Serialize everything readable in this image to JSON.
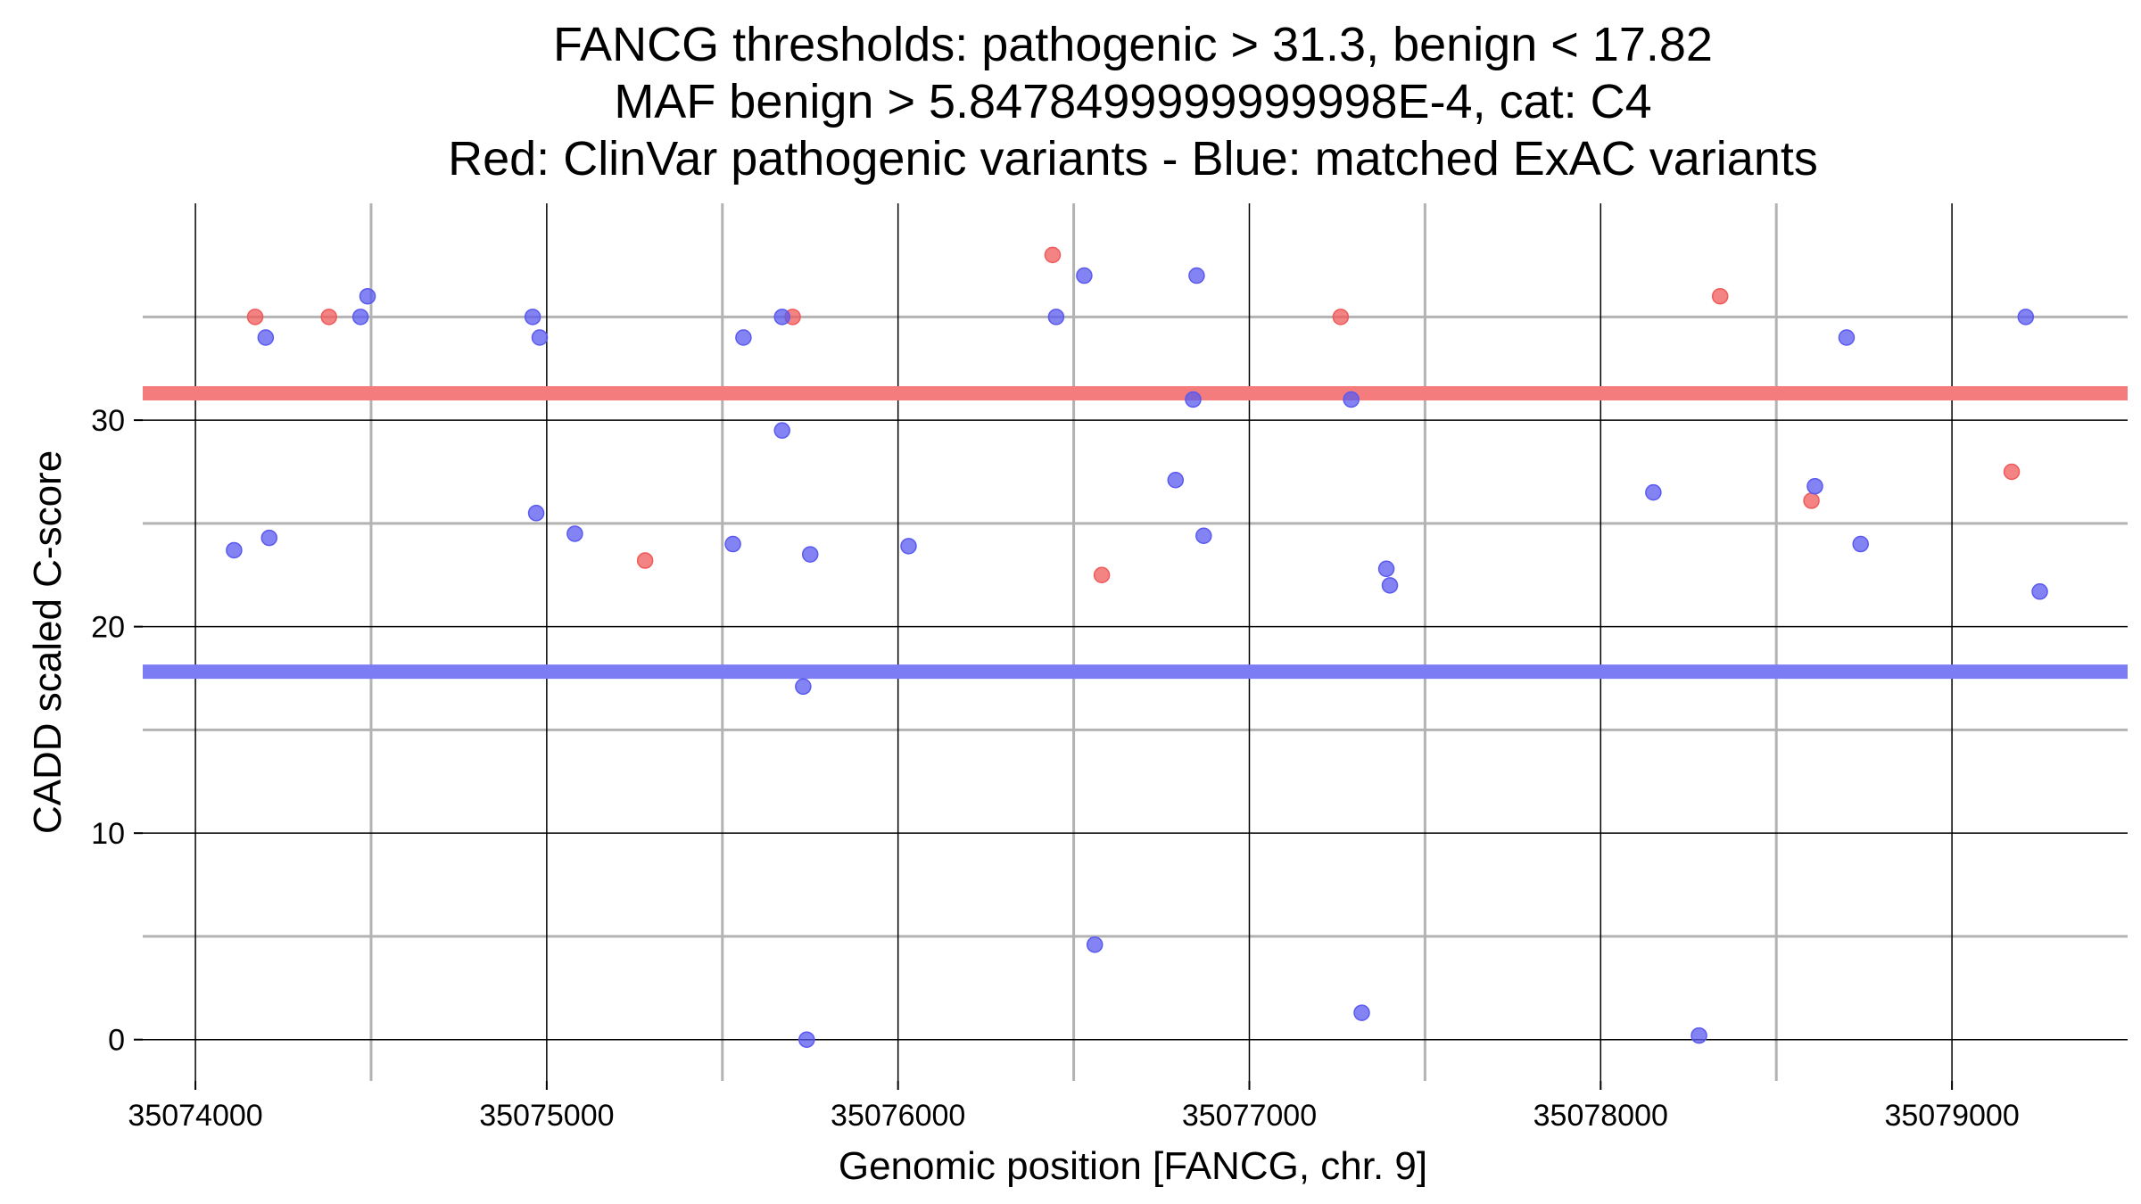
{
  "chart_data": {
    "type": "scatter",
    "title_lines": [
      "FANCG thresholds: pathogenic > 31.3, benign < 17.82",
      "MAF benign > 5.8478499999999998E-4, cat: C4",
      "Red: ClinVar pathogenic variants - Blue: matched ExAC variants"
    ],
    "xlabel": "Genomic position [FANCG, chr. 9]",
    "ylabel": "CADD scaled C-score",
    "xlim": [
      35073850,
      35079500
    ],
    "ylim": [
      -2,
      40.5
    ],
    "x_ticks": [
      35074000,
      35075000,
      35076000,
      35077000,
      35078000,
      35079000
    ],
    "x_tick_labels": [
      "35074000",
      "35075000",
      "35076000",
      "35077000",
      "35078000",
      "35079000"
    ],
    "x_minor_grid": [
      35074500,
      35075500,
      35076500,
      35077500,
      35078500
    ],
    "y_ticks": [
      0,
      10,
      20,
      30
    ],
    "y_tick_labels": [
      "0",
      "10",
      "20",
      "30"
    ],
    "y_minor_grid": [
      5,
      15,
      25,
      35
    ],
    "grid": true,
    "thresholds": [
      {
        "kind": "pathogenic",
        "y": 31.3,
        "color": "#f47c7c"
      },
      {
        "kind": "benign",
        "y": 17.82,
        "color": "#7c7cf4"
      }
    ],
    "series": [
      {
        "color": "#f05a5a",
        "points": [
          [
            35074170,
            35
          ],
          [
            35074380,
            35
          ],
          [
            35075280,
            23.2
          ],
          [
            35075700,
            35
          ],
          [
            35076440,
            38
          ],
          [
            35076580,
            22.5
          ],
          [
            35077260,
            35
          ],
          [
            35078340,
            36
          ],
          [
            35078600,
            26.1
          ],
          [
            35079170,
            27.5
          ]
        ]
      },
      {
        "color": "#5a5af0",
        "points": [
          [
            35074110,
            23.7
          ],
          [
            35074200,
            34
          ],
          [
            35074210,
            24.3
          ],
          [
            35074470,
            35
          ],
          [
            35074490,
            36
          ],
          [
            35074960,
            35
          ],
          [
            35074970,
            25.5
          ],
          [
            35074980,
            34
          ],
          [
            35075080,
            24.5
          ],
          [
            35075530,
            24
          ],
          [
            35075560,
            34
          ],
          [
            35075670,
            35
          ],
          [
            35075670,
            29.5
          ],
          [
            35075730,
            17.1
          ],
          [
            35075740,
            0
          ],
          [
            35075750,
            23.5
          ],
          [
            35076030,
            23.9
          ],
          [
            35076450,
            35
          ],
          [
            35076530,
            37
          ],
          [
            35076560,
            4.6
          ],
          [
            35076790,
            27.1
          ],
          [
            35076840,
            31
          ],
          [
            35076850,
            37
          ],
          [
            35076870,
            24.4
          ],
          [
            35077290,
            31
          ],
          [
            35077320,
            1.3
          ],
          [
            35077390,
            22.8
          ],
          [
            35077400,
            22
          ],
          [
            35078150,
            26.5
          ],
          [
            35078280,
            0.2
          ],
          [
            35078610,
            26.8
          ],
          [
            35078700,
            34
          ],
          [
            35078740,
            24
          ],
          [
            35079210,
            35
          ],
          [
            35079250,
            21.7
          ]
        ]
      }
    ]
  }
}
